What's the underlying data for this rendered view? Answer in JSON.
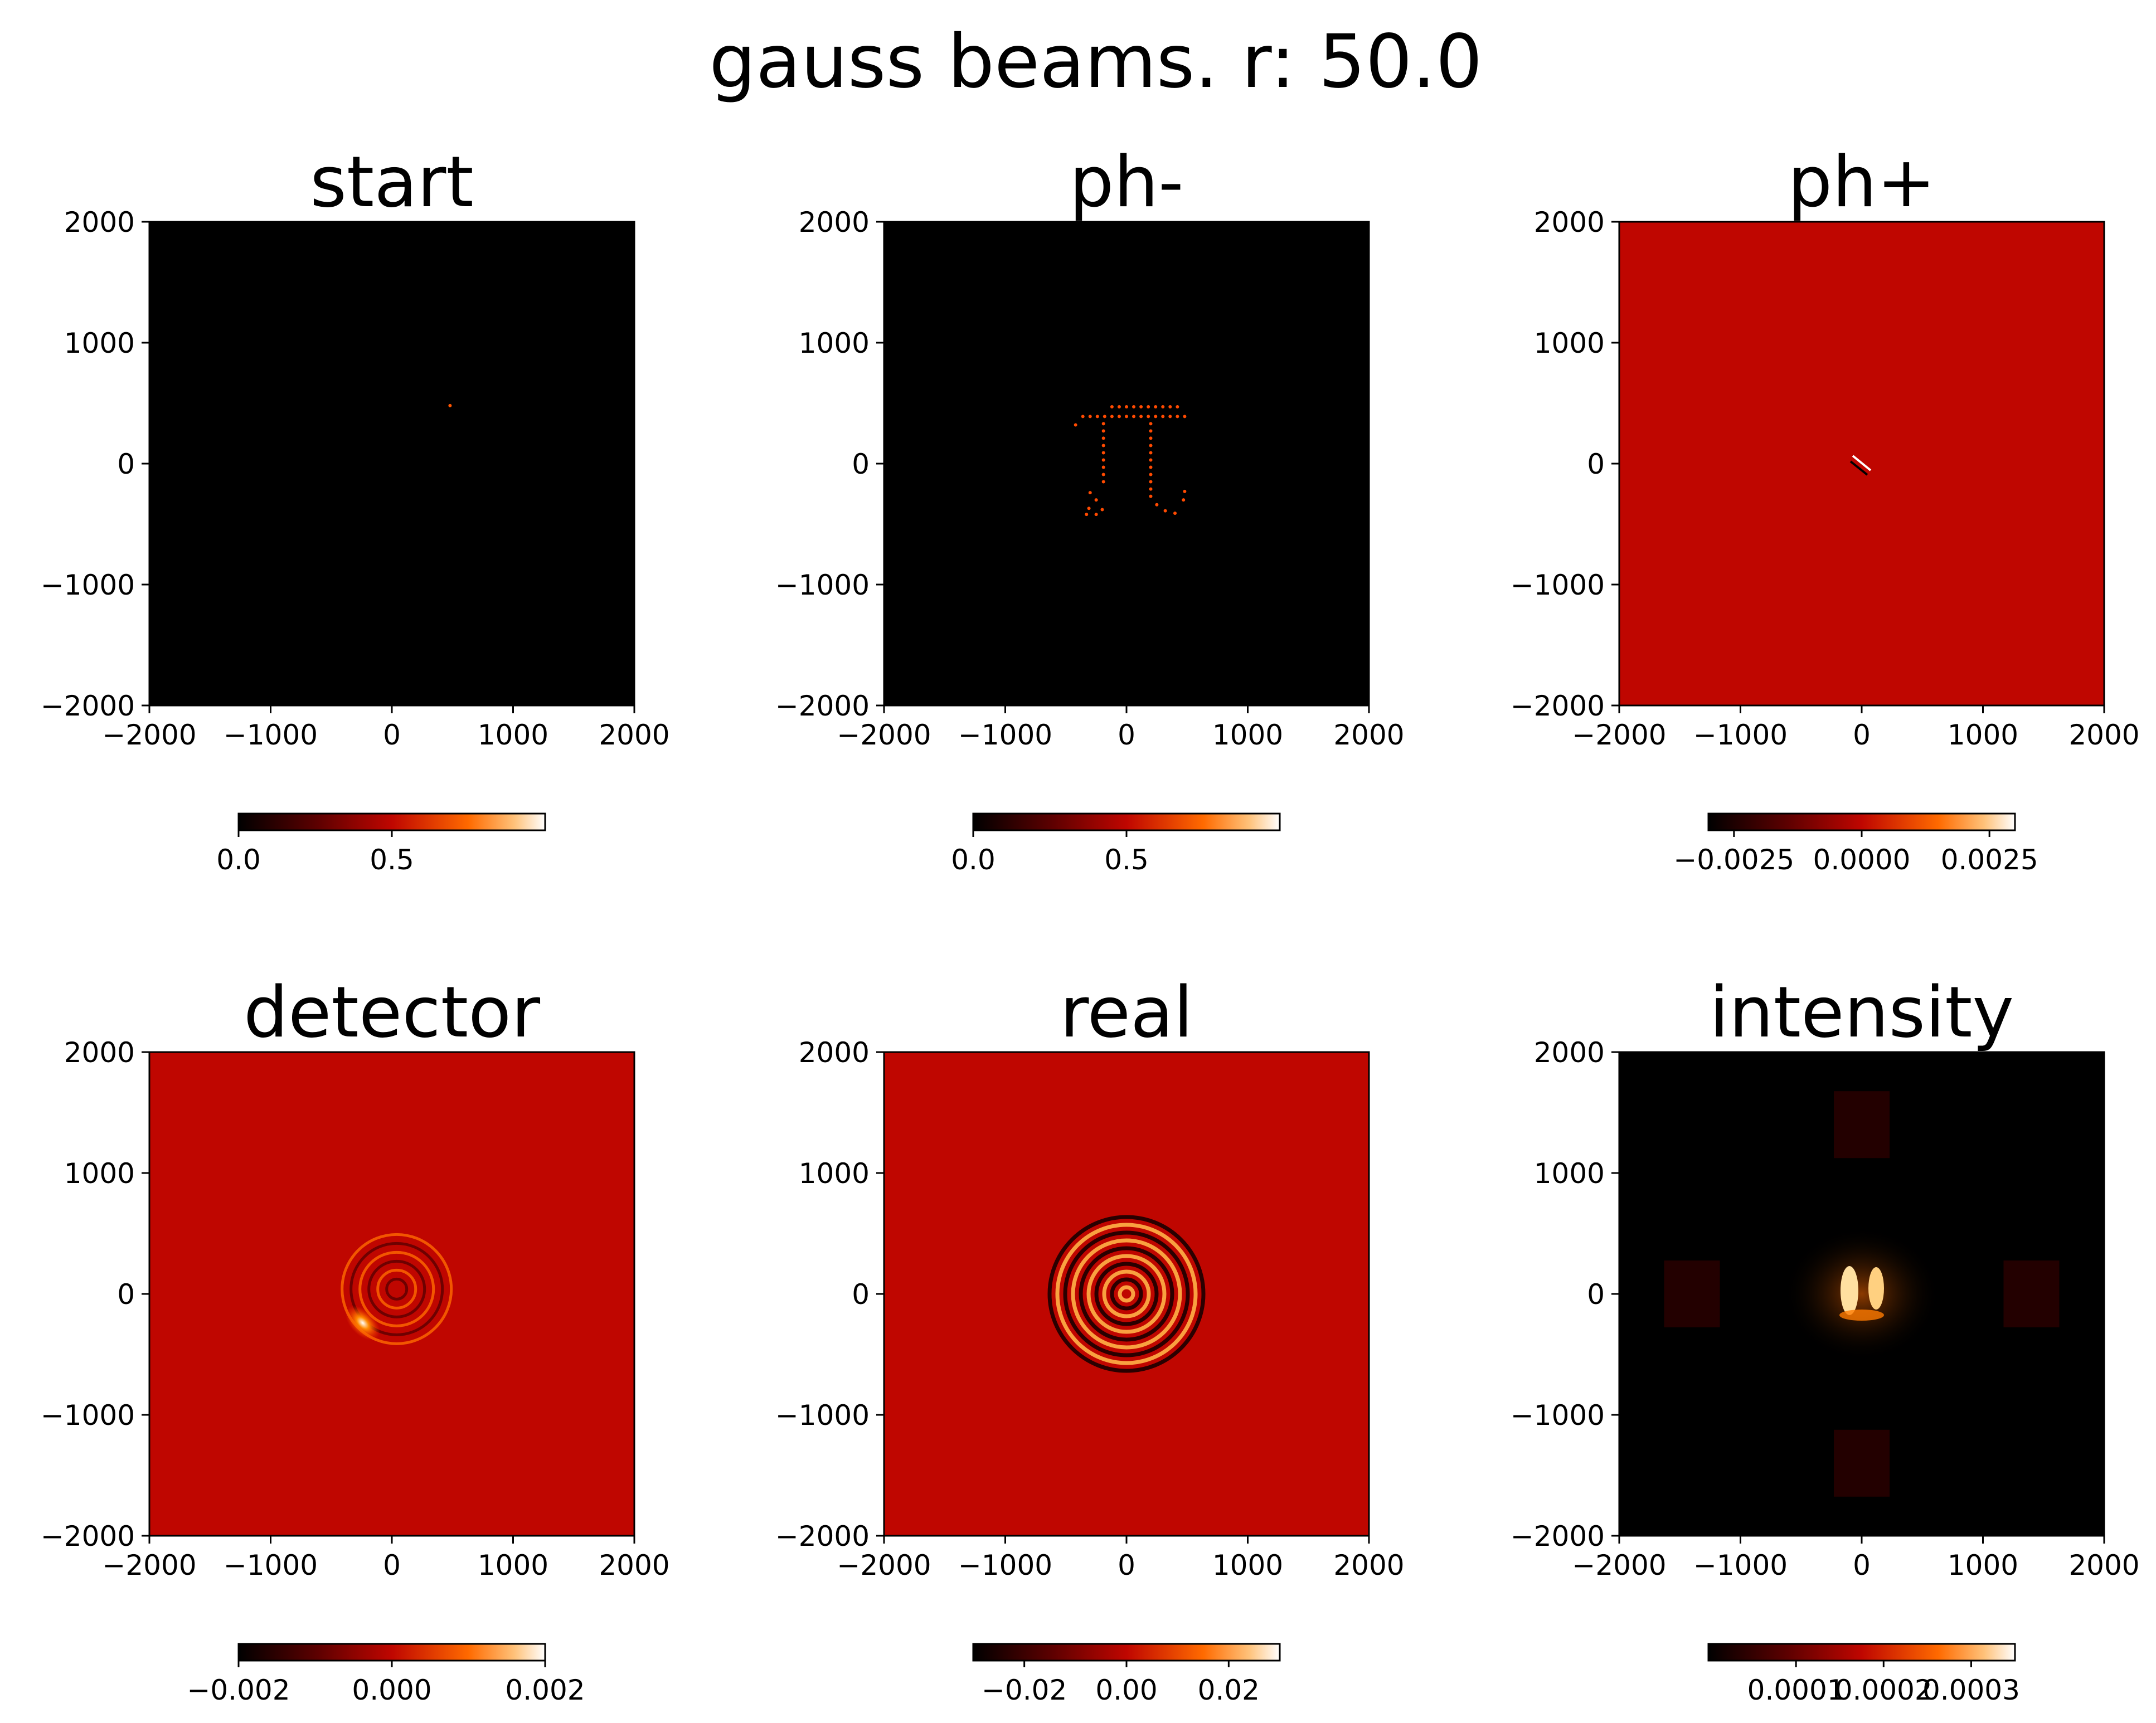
{
  "figure": {
    "title": "gauss beams. r: 50.0"
  },
  "chart_data": [
    {
      "type": "heatmap",
      "title": "start",
      "xlim": [
        -2000,
        2000
      ],
      "ylim": [
        -2000,
        2000
      ],
      "xticks": [
        "−2000",
        "−1000",
        "0",
        "1000",
        "2000"
      ],
      "yticks": [
        "2000",
        "1000",
        "0",
        "−1000",
        "−2000"
      ],
      "colormap": "gist_heat",
      "background": "#000000",
      "colorbar": {
        "range": [
          0.0,
          1.0
        ],
        "ticks": [
          "0.0",
          "0.5"
        ]
      }
    },
    {
      "type": "heatmap",
      "title": "ph-",
      "xlim": [
        -2000,
        2000
      ],
      "ylim": [
        -2000,
        2000
      ],
      "xticks": [
        "−2000",
        "−1000",
        "0",
        "1000",
        "2000"
      ],
      "yticks": [
        "2000",
        "1000",
        "0",
        "−1000",
        "−2000"
      ],
      "colormap": "gist_heat",
      "background": "#000000",
      "colorbar": {
        "range": [
          0.0,
          1.0
        ],
        "ticks": [
          "0.0",
          "0.5"
        ]
      }
    },
    {
      "type": "heatmap",
      "title": "ph+",
      "xlim": [
        -2000,
        2000
      ],
      "ylim": [
        -2000,
        2000
      ],
      "xticks": [
        "−2000",
        "−1000",
        "0",
        "1000",
        "2000"
      ],
      "yticks": [
        "2000",
        "1000",
        "0",
        "−1000",
        "−2000"
      ],
      "colormap": "gist_heat",
      "background": "#bf0600",
      "colorbar": {
        "range": [
          -0.003,
          0.003
        ],
        "ticks": [
          "−0.0025",
          "0.0000",
          "0.0025"
        ]
      }
    },
    {
      "type": "heatmap",
      "title": "detector",
      "xlim": [
        -2000,
        2000
      ],
      "ylim": [
        -2000,
        2000
      ],
      "xticks": [
        "−2000",
        "−1000",
        "0",
        "1000",
        "2000"
      ],
      "yticks": [
        "2000",
        "1000",
        "0",
        "−1000",
        "−2000"
      ],
      "colormap": "gist_heat",
      "background": "#bf0600",
      "colorbar": {
        "range": [
          -0.002,
          0.002
        ],
        "ticks": [
          "−0.002",
          "0.000",
          "0.002"
        ]
      }
    },
    {
      "type": "heatmap",
      "title": "real",
      "xlim": [
        -2000,
        2000
      ],
      "ylim": [
        -2000,
        2000
      ],
      "xticks": [
        "−2000",
        "−1000",
        "0",
        "1000",
        "2000"
      ],
      "yticks": [
        "2000",
        "1000",
        "0",
        "−1000",
        "−2000"
      ],
      "colormap": "gist_heat",
      "background": "#bf0600",
      "colorbar": {
        "range": [
          -0.03,
          0.03
        ],
        "ticks": [
          "−0.02",
          "0.00",
          "0.02"
        ]
      }
    },
    {
      "type": "heatmap",
      "title": "intensity",
      "xlim": [
        -2000,
        2000
      ],
      "ylim": [
        -2000,
        2000
      ],
      "xticks": [
        "−2000",
        "−1000",
        "0",
        "1000",
        "2000"
      ],
      "yticks": [
        "2000",
        "1000",
        "0",
        "−1000",
        "−2000"
      ],
      "colormap": "gist_heat",
      "background": "#000000",
      "colorbar": {
        "range": [
          0.0,
          0.00035
        ],
        "ticks": [
          "0.0001",
          "0.0002",
          "0.0003"
        ]
      }
    }
  ]
}
